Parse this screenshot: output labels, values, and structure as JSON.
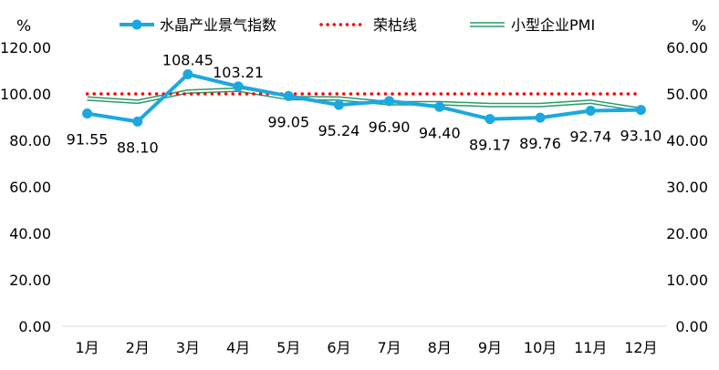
{
  "chart_data": {
    "type": "line",
    "categories": [
      "1月",
      "2月",
      "3月",
      "4月",
      "5月",
      "6月",
      "7月",
      "8月",
      "9月",
      "10月",
      "11月",
      "12月"
    ],
    "left_axis": {
      "unit_label": "%",
      "range": [
        0,
        120
      ],
      "ticks": [
        "0.00",
        "20.00",
        "40.00",
        "60.00",
        "80.00",
        "100.00",
        "120.00"
      ],
      "tick_values": [
        0,
        20,
        40,
        60,
        80,
        100,
        120
      ]
    },
    "right_axis": {
      "unit_label": "%",
      "range": [
        0,
        60
      ],
      "ticks": [
        "0.00",
        "10.00",
        "20.00",
        "30.00",
        "40.00",
        "50.00",
        "60.00"
      ],
      "tick_values": [
        0,
        10,
        20,
        30,
        40,
        50,
        60
      ]
    },
    "series": [
      {
        "name": "水晶产业景气指数",
        "axis": "left",
        "style": "line-markers",
        "color": "#1ba8e0",
        "values": [
          91.55,
          88.1,
          108.45,
          103.21,
          99.05,
          95.24,
          96.9,
          94.4,
          89.17,
          89.76,
          92.74,
          93.1
        ],
        "labels": [
          "91.55",
          "88.10",
          "108.45",
          "103.21",
          "99.05",
          "95.24",
          "96.90",
          "94.40",
          "89.17",
          "89.76",
          "92.74",
          "93.10"
        ]
      },
      {
        "name": "荣枯线",
        "axis": "left",
        "style": "dotted",
        "color": "#ff0000",
        "values": [
          100,
          100,
          100,
          100,
          100,
          100,
          100,
          100,
          100,
          100,
          100,
          100
        ]
      },
      {
        "name": "小型企业PMI",
        "axis": "right",
        "style": "double-line",
        "color": "#2a9a66",
        "values": [
          49.0,
          48.3,
          50.5,
          50.9,
          49.1,
          49.0,
          48.0,
          48.0,
          47.6,
          47.6,
          48.3,
          46.6
        ]
      }
    ],
    "legend_position": "top-center",
    "grid": "horizontal-baseline-only"
  }
}
